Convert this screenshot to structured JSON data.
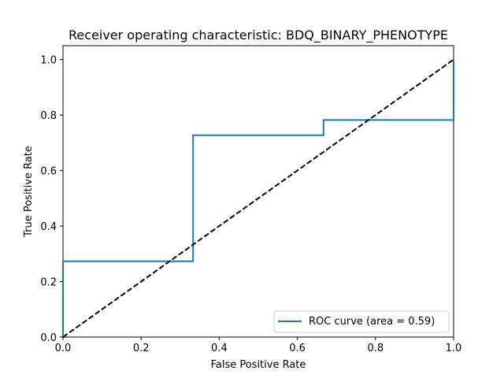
{
  "chart_data": {
    "type": "line",
    "title": "Receiver operating characteristic: BDQ_BINARY_PHENOTYPE",
    "xlabel": "False Positive Rate",
    "ylabel": "True Positive Rate",
    "xlim": [
      0.0,
      1.0
    ],
    "ylim": [
      0.0,
      1.05
    ],
    "xticks": [
      "0.0",
      "0.2",
      "0.4",
      "0.6",
      "0.8",
      "1.0"
    ],
    "yticks": [
      "0.0",
      "0.2",
      "0.4",
      "0.6",
      "0.8",
      "1.0"
    ],
    "grid": false,
    "legend_position": "lower right",
    "series": [
      {
        "name": "ROC curve (area = 0.59)",
        "color": "#1f77b4",
        "style": "solid",
        "x": [
          0.0,
          0.0,
          0.333,
          0.333,
          0.667,
          0.667,
          1.0,
          1.0
        ],
        "y": [
          0.0,
          0.273,
          0.273,
          0.727,
          0.727,
          0.782,
          0.782,
          1.0
        ]
      },
      {
        "color": "#000000",
        "style": "dashed",
        "x": [
          0.0,
          1.0
        ],
        "y": [
          0.0,
          1.0
        ]
      }
    ]
  }
}
